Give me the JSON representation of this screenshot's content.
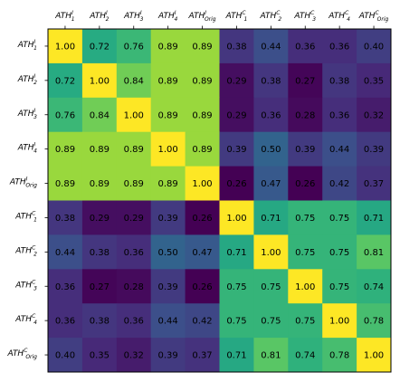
{
  "chart_data": {
    "type": "heatmap",
    "title": "",
    "xlabel": "",
    "ylabel": "",
    "row_labels": [
      {
        "base": "ATH",
        "sup": "I",
        "sub": "1"
      },
      {
        "base": "ATH",
        "sup": "I",
        "sub": "2"
      },
      {
        "base": "ATH",
        "sup": "I",
        "sub": "3"
      },
      {
        "base": "ATH",
        "sup": "I",
        "sub": "4"
      },
      {
        "base": "ATH",
        "sup": "I",
        "sub": "Orig"
      },
      {
        "base": "ATH",
        "sup": "C",
        "sub": "1"
      },
      {
        "base": "ATH",
        "sup": "C",
        "sub": "2"
      },
      {
        "base": "ATH",
        "sup": "C",
        "sub": "3"
      },
      {
        "base": "ATH",
        "sup": "C",
        "sub": "4"
      },
      {
        "base": "ATH",
        "sup": "C",
        "sub": "Orig"
      }
    ],
    "col_labels": [
      {
        "base": "ATH",
        "sup": "I",
        "sub": "1"
      },
      {
        "base": "ATH",
        "sup": "I",
        "sub": "2"
      },
      {
        "base": "ATH",
        "sup": "I",
        "sub": "3"
      },
      {
        "base": "ATH",
        "sup": "I",
        "sub": "4"
      },
      {
        "base": "ATH",
        "sup": "I",
        "sub": "Orig"
      },
      {
        "base": "ATH",
        "sup": "C",
        "sub": "1"
      },
      {
        "base": "ATH",
        "sup": "C",
        "sub": "2"
      },
      {
        "base": "ATH",
        "sup": "C",
        "sub": "3"
      },
      {
        "base": "ATH",
        "sup": "C",
        "sub": "4"
      },
      {
        "base": "ATH",
        "sup": "C",
        "sub": "Orig"
      }
    ],
    "values": [
      [
        1.0,
        0.72,
        0.76,
        0.89,
        0.89,
        0.38,
        0.44,
        0.36,
        0.36,
        0.4
      ],
      [
        0.72,
        1.0,
        0.84,
        0.89,
        0.89,
        0.29,
        0.38,
        0.27,
        0.38,
        0.35
      ],
      [
        0.76,
        0.84,
        1.0,
        0.89,
        0.89,
        0.29,
        0.36,
        0.28,
        0.36,
        0.32
      ],
      [
        0.89,
        0.89,
        0.89,
        1.0,
        0.89,
        0.39,
        0.5,
        0.39,
        0.44,
        0.39
      ],
      [
        0.89,
        0.89,
        0.89,
        0.89,
        1.0,
        0.26,
        0.47,
        0.26,
        0.42,
        0.37
      ],
      [
        0.38,
        0.29,
        0.29,
        0.39,
        0.26,
        1.0,
        0.71,
        0.75,
        0.75,
        0.71
      ],
      [
        0.44,
        0.38,
        0.36,
        0.5,
        0.47,
        0.71,
        1.0,
        0.75,
        0.75,
        0.81
      ],
      [
        0.36,
        0.27,
        0.28,
        0.39,
        0.26,
        0.75,
        0.75,
        1.0,
        0.75,
        0.74
      ],
      [
        0.36,
        0.38,
        0.36,
        0.44,
        0.42,
        0.75,
        0.75,
        0.75,
        1.0,
        0.78
      ],
      [
        0.4,
        0.35,
        0.32,
        0.39,
        0.37,
        0.71,
        0.81,
        0.74,
        0.78,
        1.0
      ]
    ],
    "colormap": "viridis",
    "value_range": [
      0.26,
      1.0
    ],
    "x_tick_position": "top",
    "grid": false,
    "legend": "none"
  }
}
